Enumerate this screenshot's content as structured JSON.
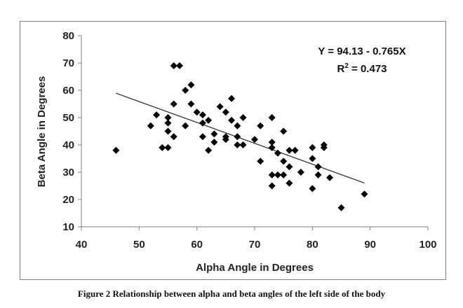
{
  "caption": "Figure 2 Relationship between alpha and beta angles of the left side of the body",
  "chart_data": {
    "type": "scatter",
    "title": "",
    "xlabel": "Alpha Angle in Degrees",
    "ylabel": "Beta Angle in Degrees",
    "xlim": [
      40,
      100
    ],
    "ylim": [
      10,
      80
    ],
    "xticks": [
      "40",
      "50",
      "60",
      "70",
      "80",
      "90",
      "100"
    ],
    "yticks": [
      "10",
      "20",
      "30",
      "40",
      "50",
      "60",
      "70",
      "80"
    ],
    "grid": false,
    "marker": "diamond",
    "marker_color": "#000000",
    "annotations": {
      "equation": "Y = 94.13 - 0.765X",
      "r2_prefix": "R",
      "r2_sup": "2",
      "r2_value": " = 0.473"
    },
    "trendline": {
      "intercept": 94.13,
      "slope": -0.765,
      "x_range": [
        46,
        89
      ]
    },
    "points": [
      [
        46,
        38
      ],
      [
        52,
        47
      ],
      [
        53,
        51
      ],
      [
        54,
        39
      ],
      [
        55,
        39
      ],
      [
        55,
        45
      ],
      [
        55,
        48
      ],
      [
        55,
        50
      ],
      [
        56,
        43
      ],
      [
        56,
        55
      ],
      [
        56,
        69
      ],
      [
        57,
        69
      ],
      [
        58,
        47
      ],
      [
        58,
        60
      ],
      [
        59,
        55
      ],
      [
        59,
        62
      ],
      [
        60,
        52
      ],
      [
        61,
        43
      ],
      [
        61,
        48
      ],
      [
        61,
        51
      ],
      [
        62,
        38
      ],
      [
        62,
        49
      ],
      [
        63,
        41
      ],
      [
        63,
        44
      ],
      [
        64,
        54
      ],
      [
        65,
        42
      ],
      [
        65,
        43
      ],
      [
        65,
        52
      ],
      [
        66,
        49
      ],
      [
        66,
        57
      ],
      [
        67,
        40
      ],
      [
        67,
        43
      ],
      [
        67,
        47
      ],
      [
        68,
        40
      ],
      [
        68,
        50
      ],
      [
        70,
        42
      ],
      [
        71,
        34
      ],
      [
        71,
        47
      ],
      [
        73,
        25
      ],
      [
        73,
        29
      ],
      [
        73,
        39
      ],
      [
        73,
        41
      ],
      [
        73,
        50
      ],
      [
        74,
        29
      ],
      [
        74,
        37
      ],
      [
        75,
        29
      ],
      [
        75,
        34
      ],
      [
        75,
        45
      ],
      [
        76,
        26
      ],
      [
        76,
        32
      ],
      [
        76,
        38
      ],
      [
        77,
        38
      ],
      [
        78,
        30
      ],
      [
        80,
        24
      ],
      [
        80,
        35
      ],
      [
        80,
        39
      ],
      [
        81,
        29
      ],
      [
        81,
        32
      ],
      [
        82,
        39
      ],
      [
        82,
        40
      ],
      [
        83,
        28
      ],
      [
        85,
        17
      ],
      [
        89,
        22
      ]
    ]
  }
}
